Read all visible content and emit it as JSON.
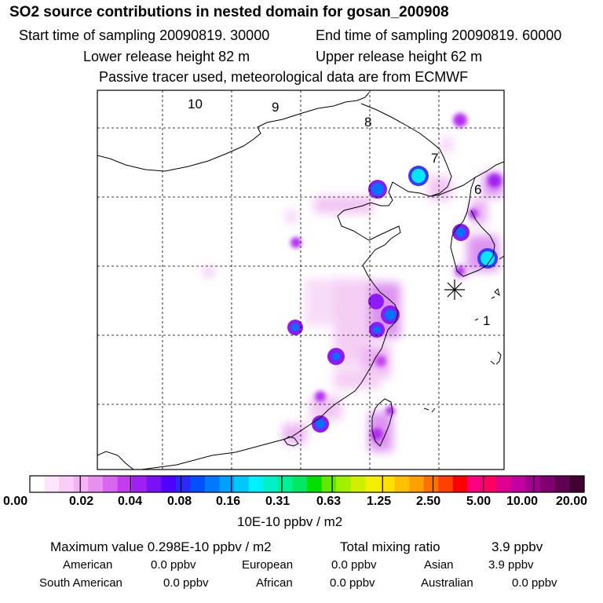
{
  "header": {
    "title": "SO2 source contributions in nested domain for gosan_200908",
    "start_time": "Start time of sampling 20090819. 30000",
    "end_time": "End time of sampling 20090819. 60000",
    "lower_height": "Lower release height   82 m",
    "upper_height": "Upper release height   62 m",
    "tracer_note": "Passive tracer used, meteorological data are from ECMWF"
  },
  "map": {
    "region_labels": [
      "10",
      "9",
      "8",
      "7",
      "6",
      "1"
    ],
    "receptor_marker": "receptor-asterisk"
  },
  "colorbar": {
    "labels": [
      "0.00",
      "0.02",
      "0.04",
      "0.08",
      "0.16",
      "0.31",
      "0.63",
      "1.25",
      "2.50",
      "5.00",
      "10.00",
      "20.00"
    ],
    "unit": "10E-10 ppbv / m2",
    "colors": [
      "#ffffff",
      "#fde6fd",
      "#f8cdf8",
      "#f3b2f3",
      "#e98ff0",
      "#d966f0",
      "#c43cf0",
      "#a020f0",
      "#7a10f5",
      "#5000ff",
      "#2a28ff",
      "#0050ff",
      "#0078ff",
      "#00a0ff",
      "#00c8ff",
      "#00f0ff",
      "#00f0c8",
      "#00f096",
      "#00e864",
      "#00e000",
      "#60e800",
      "#a0f000",
      "#d0f000",
      "#f0f000",
      "#ffe000",
      "#ffc000",
      "#ffa000",
      "#ff7000",
      "#ff4000",
      "#ff0000",
      "#ff0080",
      "#ff0060",
      "#e00090",
      "#c000a0",
      "#a00090",
      "#800070",
      "#600050",
      "#400030"
    ]
  },
  "summary": {
    "max_value": "Maximum value  0.298E-10 ppbv / m2",
    "total_label": "Total mixing ratio",
    "total_value": "3.9 ppbv",
    "american_label": "American",
    "american_value": "0.0 ppbv",
    "european_label": "European",
    "european_value": "0.0 ppbv",
    "asian_label": "Asian",
    "asian_value": "3.9 ppbv",
    "south_american_label": "South American",
    "south_american_value": "0.0 ppbv",
    "african_label": "African",
    "african_value": "0.0 ppbv",
    "australian_label": "Australian",
    "australian_value": "0.0 ppbv"
  }
}
